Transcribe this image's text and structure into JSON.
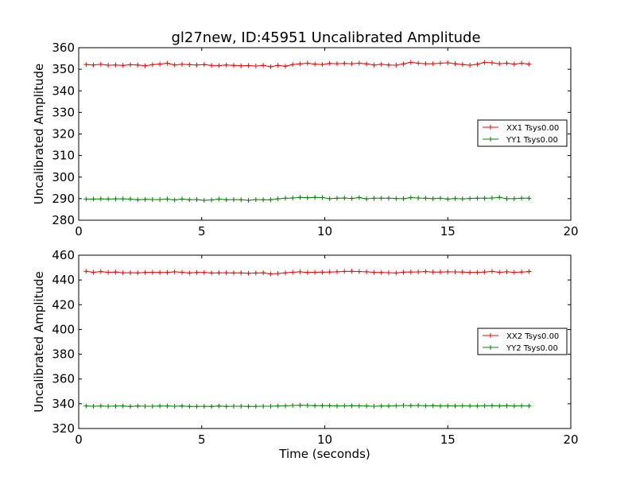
{
  "figure": {
    "title": "gl27new, ID:45951 Uncalibrated Amplitude"
  },
  "colors": {
    "series1": "#ff0000",
    "series2": "#008000",
    "axis": "#000000",
    "background": "#ffffff"
  },
  "chart_data": [
    {
      "type": "line",
      "title": "gl27new, ID:45951 Uncalibrated Amplitude",
      "xlabel": "",
      "ylabel": "Uncalibrated Amplitude",
      "xlim": [
        0,
        20
      ],
      "ylim": [
        280,
        360
      ],
      "xticks": [
        0,
        5,
        10,
        15,
        20
      ],
      "yticks": [
        280,
        290,
        300,
        310,
        320,
        330,
        340,
        350,
        360
      ],
      "grid": false,
      "legend_position": "center-right",
      "x": [
        0.3,
        0.6,
        0.9,
        1.2,
        1.5,
        1.8,
        2.1,
        2.4,
        2.7,
        3.0,
        3.3,
        3.6,
        3.9,
        4.2,
        4.5,
        4.8,
        5.1,
        5.4,
        5.7,
        6.0,
        6.3,
        6.6,
        6.9,
        7.2,
        7.5,
        7.8,
        8.1,
        8.4,
        8.7,
        9.0,
        9.3,
        9.6,
        9.9,
        10.2,
        10.5,
        10.8,
        11.1,
        11.4,
        11.7,
        12.0,
        12.3,
        12.6,
        12.9,
        13.2,
        13.5,
        13.8,
        14.1,
        14.4,
        14.7,
        15.0,
        15.3,
        15.6,
        15.9,
        16.2,
        16.5,
        16.8,
        17.1,
        17.4,
        17.7,
        18.0,
        18.3
      ],
      "series": [
        {
          "name": "XX1 Tsys0.00",
          "color": "#ff0000",
          "values": [
            352.2,
            352.0,
            352.3,
            351.9,
            352.0,
            351.8,
            352.1,
            352.0,
            351.6,
            352.1,
            352.4,
            352.8,
            352.0,
            352.3,
            352.1,
            352.0,
            352.2,
            351.8,
            351.7,
            352.0,
            351.8,
            351.6,
            351.7,
            351.5,
            351.8,
            351.2,
            351.8,
            351.4,
            352.2,
            352.5,
            352.8,
            352.4,
            352.2,
            352.7,
            352.6,
            352.7,
            352.6,
            352.8,
            352.5,
            352.0,
            352.3,
            352.0,
            351.9,
            352.5,
            353.2,
            352.8,
            352.6,
            352.6,
            352.8,
            353.0,
            352.6,
            352.2,
            351.9,
            352.3,
            353.2,
            353.0,
            352.6,
            352.8,
            352.4,
            352.8,
            352.4
          ]
        },
        {
          "name": "YY1 Tsys0.00",
          "color": "#008000",
          "values": [
            289.8,
            289.8,
            289.9,
            289.8,
            289.9,
            289.9,
            289.8,
            289.5,
            289.7,
            289.6,
            289.6,
            289.8,
            289.4,
            289.8,
            289.5,
            289.6,
            289.2,
            289.4,
            289.8,
            289.5,
            289.6,
            289.5,
            289.2,
            289.6,
            289.5,
            289.5,
            289.9,
            290.2,
            290.3,
            290.6,
            290.4,
            290.6,
            290.5,
            290.0,
            290.2,
            290.3,
            290.1,
            290.5,
            289.9,
            290.2,
            290.2,
            290.2,
            290.1,
            290.0,
            290.5,
            290.3,
            290.2,
            290.0,
            290.2,
            289.8,
            290.1,
            289.9,
            290.1,
            290.2,
            290.2,
            290.3,
            290.6,
            290.0,
            290.0,
            290.2,
            290.2
          ]
        }
      ]
    },
    {
      "type": "line",
      "title": "",
      "xlabel": "Time (seconds)",
      "ylabel": "Uncalibrated Amplitude",
      "xlim": [
        0,
        20
      ],
      "ylim": [
        320,
        460
      ],
      "xticks": [
        0,
        5,
        10,
        15,
        20
      ],
      "yticks": [
        320,
        340,
        360,
        380,
        400,
        420,
        440,
        460
      ],
      "grid": false,
      "legend_position": "center-right",
      "x": [
        0.3,
        0.6,
        0.9,
        1.2,
        1.5,
        1.8,
        2.1,
        2.4,
        2.7,
        3.0,
        3.3,
        3.6,
        3.9,
        4.2,
        4.5,
        4.8,
        5.1,
        5.4,
        5.7,
        6.0,
        6.3,
        6.6,
        6.9,
        7.2,
        7.5,
        7.8,
        8.1,
        8.4,
        8.7,
        9.0,
        9.3,
        9.6,
        9.9,
        10.2,
        10.5,
        10.8,
        11.1,
        11.4,
        11.7,
        12.0,
        12.3,
        12.6,
        12.9,
        13.2,
        13.5,
        13.8,
        14.1,
        14.4,
        14.7,
        15.0,
        15.3,
        15.6,
        15.9,
        16.2,
        16.5,
        16.8,
        17.1,
        17.4,
        17.7,
        18.0,
        18.3
      ],
      "series": [
        {
          "name": "XX2 Tsys0.00",
          "color": "#ff0000",
          "values": [
            447.0,
            446.2,
            446.8,
            446.2,
            446.4,
            445.8,
            445.9,
            445.7,
            446.0,
            446.2,
            446.0,
            446.1,
            446.6,
            446.2,
            445.6,
            446.0,
            446.0,
            445.6,
            445.8,
            445.8,
            445.7,
            445.7,
            445.4,
            445.6,
            445.8,
            444.9,
            445.2,
            445.7,
            446.2,
            446.6,
            446.0,
            446.2,
            446.3,
            446.4,
            446.6,
            446.9,
            447.0,
            446.8,
            446.6,
            446.2,
            446.0,
            445.9,
            445.6,
            446.3,
            446.4,
            446.5,
            446.8,
            446.4,
            446.4,
            446.6,
            446.5,
            446.4,
            446.1,
            446.2,
            446.4,
            446.9,
            446.2,
            446.6,
            446.2,
            446.4,
            446.8
          ]
        },
        {
          "name": "YY2 Tsys0.00",
          "color": "#008000",
          "values": [
            338.2,
            338.0,
            338.2,
            338.0,
            338.1,
            338.2,
            337.8,
            338.2,
            338.0,
            338.0,
            338.2,
            338.2,
            338.0,
            338.2,
            337.8,
            337.8,
            337.9,
            337.8,
            338.2,
            337.8,
            338.0,
            338.0,
            337.8,
            337.9,
            338.0,
            338.0,
            338.2,
            338.3,
            338.6,
            338.8,
            338.6,
            338.4,
            338.5,
            338.4,
            338.2,
            338.3,
            338.4,
            338.3,
            338.2,
            338.0,
            338.2,
            338.2,
            338.3,
            338.6,
            338.5,
            338.6,
            338.3,
            338.4,
            338.2,
            338.3,
            338.2,
            338.3,
            338.2,
            338.2,
            338.3,
            338.4,
            338.2,
            338.4,
            338.2,
            338.3,
            338.2
          ]
        }
      ]
    }
  ]
}
